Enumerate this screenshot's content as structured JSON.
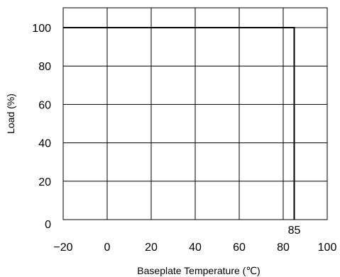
{
  "chart_data": {
    "type": "line",
    "title": "",
    "xlabel": "Baseplate Temperature (℃)",
    "ylabel": "Load (%)",
    "xlim": [
      -20,
      100
    ],
    "ylim": [
      0,
      100
    ],
    "x_ticks": [
      -20,
      0,
      20,
      40,
      60,
      80,
      100
    ],
    "x_tick_labels": [
      "−20",
      "0",
      "20",
      "40",
      "60",
      "80",
      "100"
    ],
    "y_ticks": [
      0,
      20,
      40,
      60,
      80,
      100
    ],
    "y_tick_labels": [
      "0",
      "20",
      "40",
      "60",
      "80",
      "100"
    ],
    "grid": true,
    "series": [
      {
        "x": [
          -20,
          85,
          85
        ],
        "y": [
          100,
          100,
          0
        ]
      }
    ],
    "annotations": [
      {
        "text": "85",
        "x": 85,
        "y": 0
      }
    ]
  }
}
